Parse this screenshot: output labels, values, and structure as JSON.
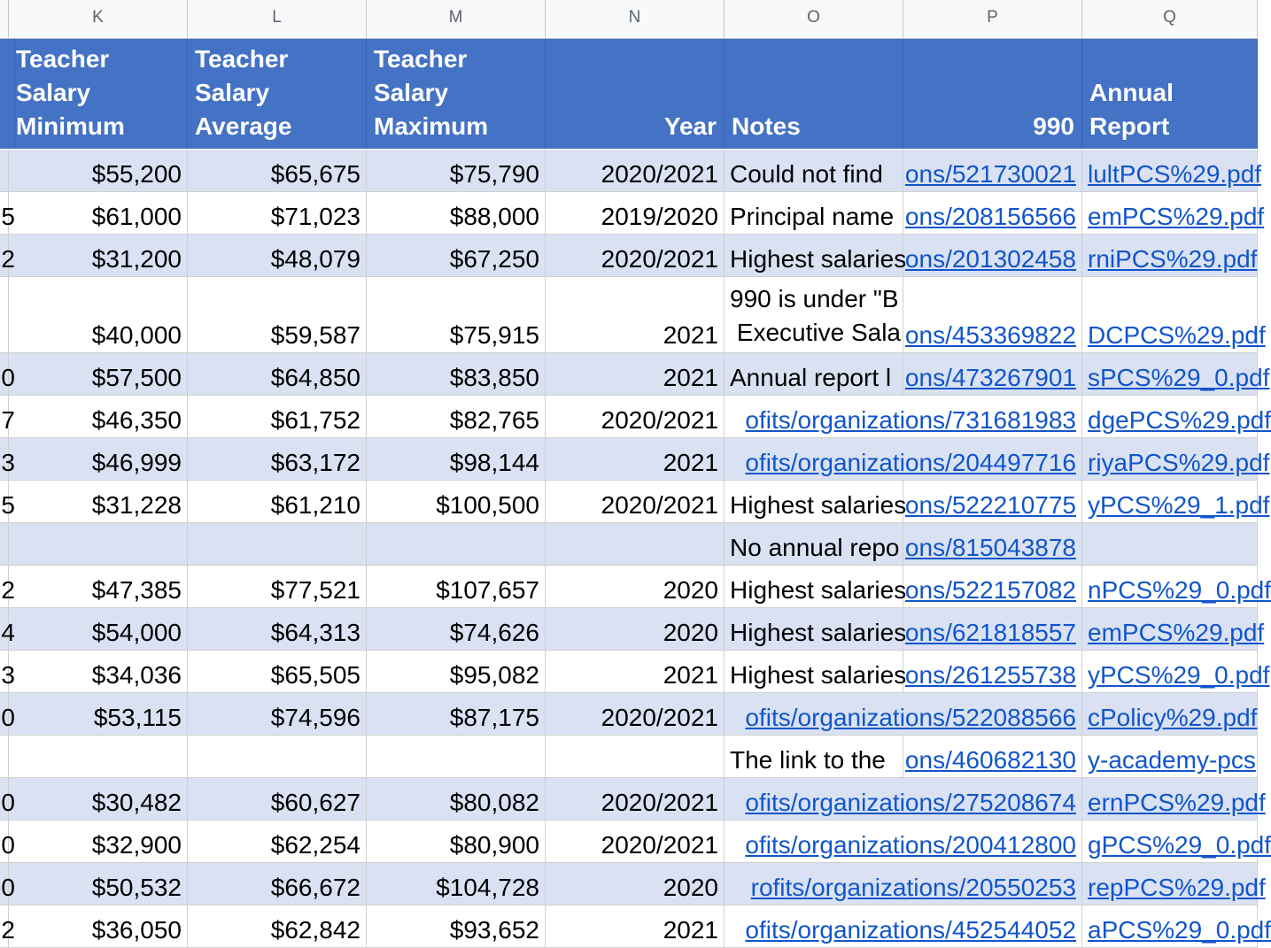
{
  "columns": [
    {
      "letter": "K",
      "header": "Teacher\nSalary\nMinimum",
      "align": "l"
    },
    {
      "letter": "L",
      "header": "Teacher\nSalary\nAverage",
      "align": "l"
    },
    {
      "letter": "M",
      "header": "Teacher\nSalary\nMaximum",
      "align": "l"
    },
    {
      "letter": "N",
      "header": "Year",
      "align": "r"
    },
    {
      "letter": "O",
      "header": "Notes",
      "align": "l"
    },
    {
      "letter": "P",
      "header": "990",
      "align": "r"
    },
    {
      "letter": "Q",
      "header": "Annual\nReport",
      "align": "l"
    }
  ],
  "rows": [
    {
      "edge": "",
      "min": "$55,200",
      "avg": "$65,675",
      "max": "$75,790",
      "year": "2020/2021",
      "notes": "Could not find",
      "f990": "ons/521730021",
      "report": "lultPCS%29.pdf"
    },
    {
      "edge": "5",
      "min": "$61,000",
      "avg": "$71,023",
      "max": "$88,000",
      "year": "2019/2020",
      "notes": "Principal name",
      "f990": "ons/208156566",
      "report": "emPCS%29.pdf"
    },
    {
      "edge": "2",
      "min": "$31,200",
      "avg": "$48,079",
      "max": "$67,250",
      "year": "2020/2021",
      "notes": "Highest salaries",
      "f990": "ons/201302458",
      "report": "rniPCS%29.pdf"
    },
    {
      "edge": "",
      "min": "$40,000",
      "avg": "$59,587",
      "max": "$75,915",
      "year": "2021",
      "notes": "990 is under \"B\n Executive Sala",
      "f990": "ons/453369822",
      "report": "DCPCS%29.pdf"
    },
    {
      "edge": "0",
      "min": "$57,500",
      "avg": "$64,850",
      "max": "$83,850",
      "year": "2021",
      "notes": "Annual report l",
      "f990": "ons/473267901",
      "report": "sPCS%29_0.pdf"
    },
    {
      "edge": "7",
      "min": "$46,350",
      "avg": "$61,752",
      "max": "$82,765",
      "year": "2020/2021",
      "notes": "ofits/organizations/731681983",
      "notes_link": true,
      "f990": "",
      "report": "dgePCS%29.pdf"
    },
    {
      "edge": "3",
      "min": "$46,999",
      "avg": "$63,172",
      "max": "$98,144",
      "year": "2021",
      "notes": "ofits/organizations/204497716",
      "notes_link": true,
      "f990": "",
      "report": "riyaPCS%29.pdf"
    },
    {
      "edge": "5",
      "min": "$31,228",
      "avg": "$61,210",
      "max": "$100,500",
      "year": "2020/2021",
      "notes": "Highest salaries",
      "f990": "ons/522210775",
      "report": "yPCS%29_1.pdf"
    },
    {
      "edge": "",
      "min": "",
      "avg": "",
      "max": "",
      "year": "",
      "notes": "No annual repo",
      "f990": "ons/815043878",
      "report": ""
    },
    {
      "edge": "2",
      "min": "$47,385",
      "avg": "$77,521",
      "max": "$107,657",
      "year": "2020",
      "notes": "Highest salaries",
      "f990": "ons/522157082",
      "report": "nPCS%29_0.pdf"
    },
    {
      "edge": "4",
      "min": "$54,000",
      "avg": "$64,313",
      "max": "$74,626",
      "year": "2020",
      "notes": "Highest salaries",
      "f990": "ons/621818557",
      "report": "emPCS%29.pdf"
    },
    {
      "edge": "3",
      "min": "$34,036",
      "avg": "$65,505",
      "max": "$95,082",
      "year": "2021",
      "notes": "Highest salaries",
      "f990": "ons/261255738",
      "report": "yPCS%29_0.pdf"
    },
    {
      "edge": "0",
      "min": "$53,115",
      "avg": "$74,596",
      "max": "$87,175",
      "year": "2020/2021",
      "notes": "ofits/organizations/522088566",
      "notes_link": true,
      "f990": "",
      "report": "cPolicy%29.pdf"
    },
    {
      "edge": "",
      "min": "",
      "avg": "",
      "max": "",
      "year": "",
      "notes": "The link to the",
      "f990": "ons/460682130",
      "report": "y-academy-pcs"
    },
    {
      "edge": "0",
      "min": "$30,482",
      "avg": "$60,627",
      "max": "$80,082",
      "year": "2020/2021",
      "notes": "ofits/organizations/275208674",
      "notes_link": true,
      "f990": "",
      "report": "ernPCS%29.pdf"
    },
    {
      "edge": "0",
      "min": "$32,900",
      "avg": "$62,254",
      "max": "$80,900",
      "year": "2020/2021",
      "notes": "ofits/organizations/200412800",
      "notes_link": true,
      "f990": "",
      "report": "gPCS%29_0.pdf"
    },
    {
      "edge": "0",
      "min": "$50,532",
      "avg": "$66,672",
      "max": "$104,728",
      "year": "2020",
      "notes": "rofits/organizations/20550253",
      "notes_link": true,
      "f990": "",
      "report": "repPCS%29.pdf"
    },
    {
      "edge": "2",
      "min": "$36,050",
      "avg": "$62,842",
      "max": "$93,652",
      "year": "2021",
      "notes": "ofits/organizations/452544052",
      "notes_link": true,
      "f990": "",
      "report": "aPCS%29_0.pdf"
    }
  ],
  "colors": {
    "header_bg": "#4472c4",
    "band_bg": "#d9e1f2",
    "link": "#1155cc"
  }
}
